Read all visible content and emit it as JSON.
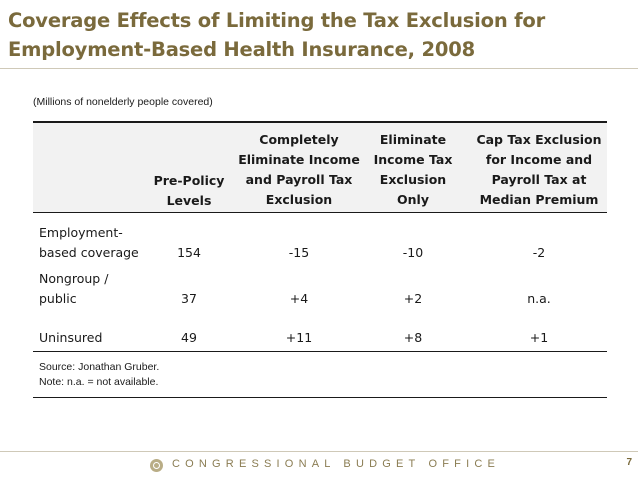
{
  "slide": {
    "title_line1": "Coverage Effects of Limiting the Tax Exclusion for",
    "title_line2": "Employment-Based Health Insurance, 2008",
    "units_note": "(Millions of nonelderly people covered)"
  },
  "table": {
    "headers": {
      "pre_policy": [
        "Pre-Policy",
        "Levels"
      ],
      "complete": [
        "Completely",
        "Eliminate Income",
        "and Payroll Tax",
        "Exclusion"
      ],
      "eliminate_income": [
        "Eliminate",
        "Income Tax",
        "Exclusion",
        "Only"
      ],
      "cap": [
        "Cap Tax Exclusion",
        "for Income and",
        "Payroll Tax at",
        "Median Premium"
      ]
    },
    "rows": [
      {
        "label": [
          "Employment-",
          "based coverage"
        ],
        "pre_policy": "154",
        "complete": "-15",
        "eliminate_income": "-10",
        "cap": "-2"
      },
      {
        "label": [
          "Nongroup /",
          "public"
        ],
        "pre_policy": "37",
        "complete": "+4",
        "eliminate_income": "+2",
        "cap": "n.a."
      },
      {
        "label": [
          "Uninsured"
        ],
        "pre_policy": "49",
        "complete": "+11",
        "eliminate_income": "+8",
        "cap": "+1"
      }
    ]
  },
  "notes": {
    "source": "Source: Jonathan Gruber.",
    "na_note": "Note: n.a. = not available."
  },
  "footer": {
    "organization": "CONGRESSIONAL BUDGET OFFICE",
    "page_number": "7",
    "logo_icon": "cbo-seal-icon"
  },
  "colors": {
    "title": "#7a6a3c",
    "header_fill": "#f2f2f2",
    "footer_text": "#8a7c52"
  }
}
